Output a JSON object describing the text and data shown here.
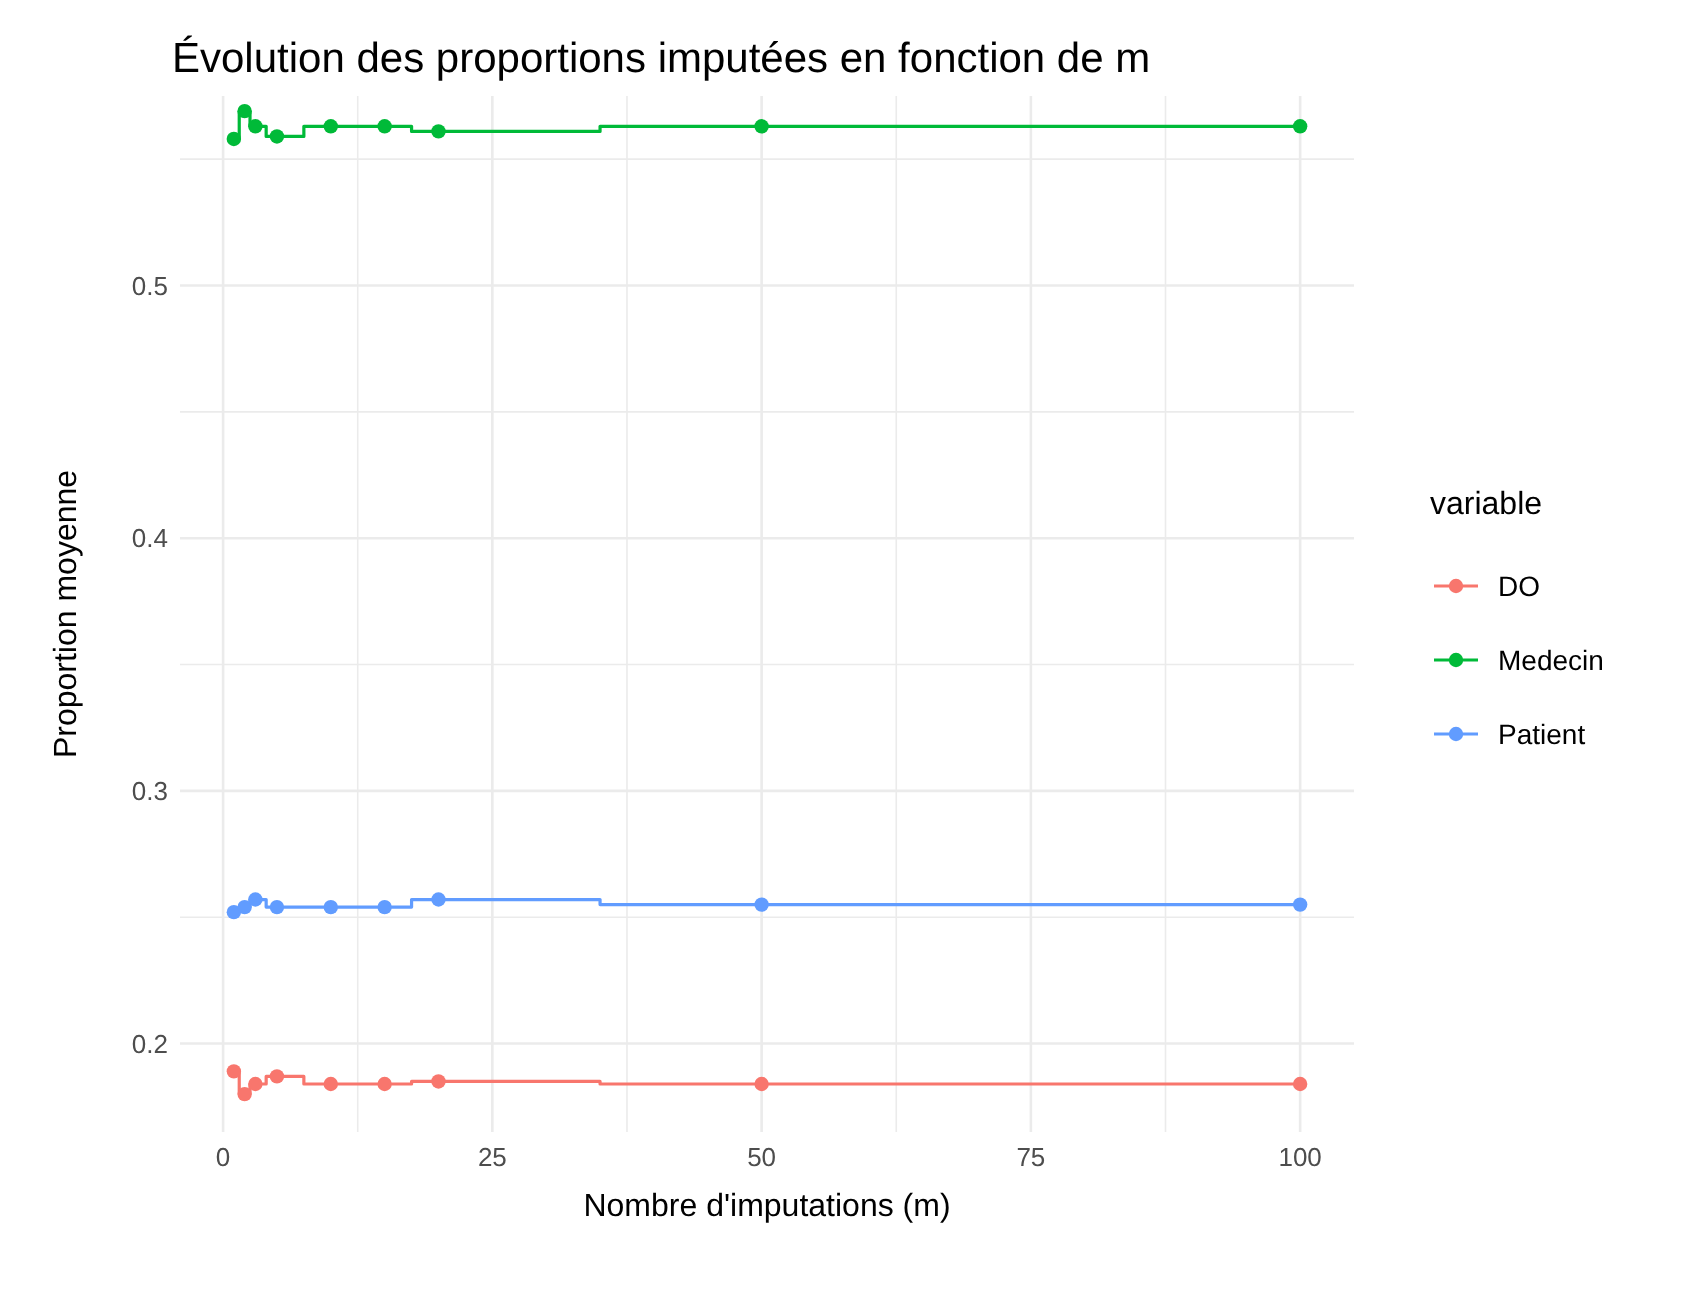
{
  "chart_data": {
    "type": "step",
    "title": "Évolution des proportions imputées en fonction de m",
    "xlabel": "Nombre d'imputations (m)",
    "ylabel": "Proportion moyenne",
    "legend_title": "variable",
    "x": [
      1,
      2,
      3,
      5,
      10,
      15,
      20,
      50,
      100
    ],
    "series": [
      {
        "name": "DO",
        "color": "#f8766d",
        "values": [
          0.189,
          0.18,
          0.184,
          0.187,
          0.184,
          0.184,
          0.185,
          0.184,
          0.184
        ]
      },
      {
        "name": "Medecin",
        "color": "#00ba38",
        "values": [
          0.558,
          0.569,
          0.563,
          0.559,
          0.563,
          0.563,
          0.561,
          0.563,
          0.563
        ]
      },
      {
        "name": "Patient",
        "color": "#619cff",
        "values": [
          0.252,
          0.254,
          0.257,
          0.254,
          0.254,
          0.254,
          0.257,
          0.255,
          0.255
        ]
      }
    ],
    "xlim": [
      -4,
      105
    ],
    "ylim": [
      0.165,
      0.575
    ],
    "xticks": [
      0,
      {
        "value": 12.5,
        "label": null
      },
      25,
      {
        "value": 37.5,
        "label": null
      },
      50,
      {
        "value": 62.5,
        "label": null
      },
      75,
      {
        "value": 87.5,
        "label": null
      },
      100
    ],
    "yticks": [
      0.2,
      {
        "value": 0.25,
        "label": null
      },
      0.3,
      {
        "value": 0.35,
        "label": null
      },
      0.4,
      {
        "value": 0.45,
        "label": null
      },
      0.5,
      {
        "value": 0.55,
        "label": null
      }
    ],
    "grid": true,
    "legend": "right",
    "marker": "circle",
    "line_style": "solid"
  }
}
